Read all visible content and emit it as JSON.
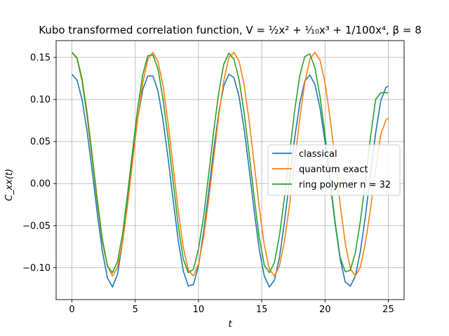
{
  "chart_data": {
    "type": "line",
    "title": "Kubo transformed correlation function, V = ½x² + ⅒x³ + 1/100x⁴, β = 8",
    "xlabel": "t",
    "ylabel": "C_xx(t)",
    "xlim": [
      -1.25,
      26.25
    ],
    "ylim": [
      -0.138,
      0.17
    ],
    "xticks": [
      0,
      5,
      10,
      15,
      20,
      25
    ],
    "yticks": [
      -0.1,
      -0.05,
      0.0,
      0.05,
      0.1,
      0.15
    ],
    "xtick_labels": [
      "0",
      "5",
      "10",
      "15",
      "20",
      "25"
    ],
    "ytick_labels": [
      "−0.10",
      "−0.05",
      "0.00",
      "0.05",
      "0.10",
      "0.15"
    ],
    "grid": true,
    "legend_position": "center-right",
    "series": [
      {
        "name": "classical",
        "color": "#1f77b4",
        "x": [
          0,
          0.4,
          0.8,
          1.2,
          1.6,
          2.0,
          2.4,
          2.8,
          3.2,
          3.6,
          4.0,
          4.4,
          4.8,
          5.2,
          5.6,
          6.0,
          6.4,
          6.8,
          7.2,
          7.6,
          8.0,
          8.4,
          8.8,
          9.2,
          9.6,
          10.0,
          10.4,
          10.8,
          11.2,
          11.6,
          12.0,
          12.4,
          12.8,
          13.2,
          13.6,
          14.0,
          14.4,
          14.8,
          15.2,
          15.6,
          16.0,
          16.4,
          16.8,
          17.2,
          17.6,
          18.0,
          18.4,
          18.8,
          19.2,
          19.6,
          20.0,
          20.4,
          20.8,
          21.2,
          21.6,
          22.0,
          22.4,
          22.8,
          23.2,
          23.6,
          24.0,
          24.4,
          24.8,
          25.0
        ],
        "y": [
          0.13,
          0.123,
          0.1,
          0.062,
          0.015,
          -0.035,
          -0.08,
          -0.112,
          -0.123,
          -0.108,
          -0.07,
          -0.02,
          0.032,
          0.078,
          0.112,
          0.128,
          0.128,
          0.11,
          0.075,
          0.03,
          -0.02,
          -0.068,
          -0.104,
          -0.122,
          -0.12,
          -0.098,
          -0.058,
          -0.01,
          0.04,
          0.084,
          0.116,
          0.13,
          0.126,
          0.104,
          0.066,
          0.018,
          -0.032,
          -0.078,
          -0.11,
          -0.123,
          -0.115,
          -0.088,
          -0.045,
          0.004,
          0.054,
          0.095,
          0.122,
          0.129,
          0.118,
          0.09,
          0.05,
          0.002,
          -0.048,
          -0.09,
          -0.117,
          -0.122,
          -0.11,
          -0.08,
          -0.038,
          0.012,
          0.06,
          0.098,
          0.114,
          0.116
        ]
      },
      {
        "name": "quantum exact",
        "color": "#ff7f0e",
        "x": [
          0,
          0.4,
          0.8,
          1.2,
          1.6,
          2.0,
          2.4,
          2.8,
          3.2,
          3.6,
          4.0,
          4.4,
          4.8,
          5.2,
          5.6,
          6.0,
          6.4,
          6.8,
          7.2,
          7.6,
          8.0,
          8.4,
          8.8,
          9.2,
          9.6,
          10.0,
          10.4,
          10.8,
          11.2,
          11.6,
          12.0,
          12.4,
          12.8,
          13.2,
          13.6,
          14.0,
          14.4,
          14.8,
          15.2,
          15.6,
          16.0,
          16.4,
          16.8,
          17.2,
          17.6,
          18.0,
          18.4,
          18.8,
          19.2,
          19.6,
          20.0,
          20.4,
          20.8,
          21.2,
          21.6,
          22.0,
          22.4,
          22.8,
          23.2,
          23.6,
          24.0,
          24.4,
          24.8,
          25.0
        ],
        "y": [
          0.156,
          0.15,
          0.125,
          0.085,
          0.035,
          -0.018,
          -0.065,
          -0.097,
          -0.11,
          -0.1,
          -0.07,
          -0.025,
          0.027,
          0.078,
          0.12,
          0.148,
          0.156,
          0.145,
          0.116,
          0.072,
          0.02,
          -0.032,
          -0.076,
          -0.103,
          -0.11,
          -0.096,
          -0.064,
          -0.02,
          0.03,
          0.08,
          0.122,
          0.15,
          0.156,
          0.146,
          0.118,
          0.075,
          0.024,
          -0.028,
          -0.073,
          -0.102,
          -0.11,
          -0.098,
          -0.068,
          -0.025,
          0.026,
          0.077,
          0.12,
          0.148,
          0.156,
          0.147,
          0.12,
          0.078,
          0.027,
          -0.025,
          -0.071,
          -0.101,
          -0.11,
          -0.099,
          -0.07,
          -0.03,
          0.018,
          0.058,
          0.075,
          0.078
        ]
      },
      {
        "name": "ring polymer n = 32",
        "color": "#2ca02c",
        "x": [
          0,
          0.4,
          0.8,
          1.2,
          1.6,
          2.0,
          2.4,
          2.8,
          3.2,
          3.6,
          4.0,
          4.4,
          4.8,
          5.2,
          5.6,
          6.0,
          6.4,
          6.8,
          7.2,
          7.6,
          8.0,
          8.4,
          8.8,
          9.2,
          9.6,
          10.0,
          10.4,
          10.8,
          11.2,
          11.6,
          12.0,
          12.4,
          12.8,
          13.2,
          13.6,
          14.0,
          14.4,
          14.8,
          15.2,
          15.6,
          16.0,
          16.4,
          16.8,
          17.2,
          17.6,
          18.0,
          18.4,
          18.8,
          19.2,
          19.6,
          20.0,
          20.4,
          20.8,
          21.2,
          21.6,
          22.0,
          22.4,
          22.8,
          23.2,
          23.6,
          24.0,
          24.4,
          24.8,
          25.0
        ],
        "y": [
          0.156,
          0.149,
          0.122,
          0.08,
          0.03,
          -0.022,
          -0.068,
          -0.098,
          -0.106,
          -0.093,
          -0.06,
          -0.012,
          0.04,
          0.09,
          0.13,
          0.152,
          0.153,
          0.136,
          0.1,
          0.054,
          0.002,
          -0.05,
          -0.09,
          -0.106,
          -0.102,
          -0.078,
          -0.04,
          0.01,
          0.062,
          0.108,
          0.142,
          0.155,
          0.148,
          0.124,
          0.085,
          0.036,
          -0.016,
          -0.064,
          -0.097,
          -0.106,
          -0.094,
          -0.062,
          -0.016,
          0.036,
          0.087,
          0.128,
          0.151,
          0.154,
          0.138,
          0.104,
          0.058,
          0.006,
          -0.046,
          -0.088,
          -0.105,
          -0.103,
          -0.082,
          -0.044,
          0.004,
          0.056,
          0.1,
          0.108,
          0.108,
          0.108
        ]
      }
    ]
  }
}
